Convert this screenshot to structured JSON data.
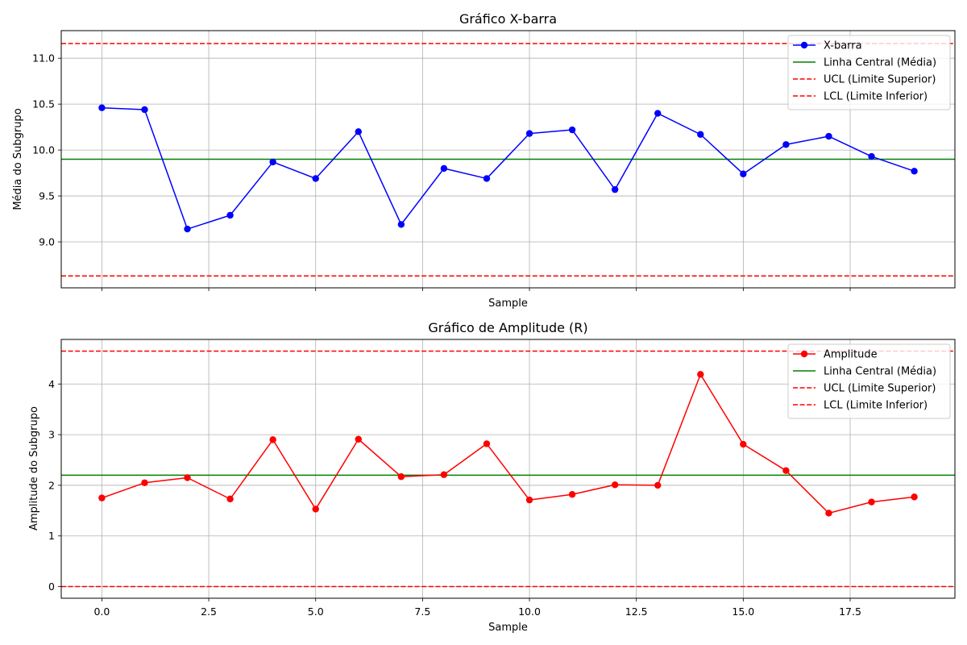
{
  "chart_data": [
    {
      "type": "line",
      "title": "Gráfico X-barra",
      "xlabel": "Sample",
      "ylabel": "Média do Subgrupo",
      "xlim": [
        -0.95,
        19.95
      ],
      "ylim": [
        8.5,
        11.3
      ],
      "xticks": [
        0.0,
        2.5,
        5.0,
        7.5,
        10.0,
        12.5,
        15.0,
        17.5
      ],
      "xtick_labels_visible": false,
      "yticks": [
        9.0,
        9.5,
        10.0,
        10.5,
        11.0
      ],
      "ytick_labels": [
        "9.0",
        "9.5",
        "10.0",
        "10.5",
        "11.0"
      ],
      "grid": true,
      "legend_position": "top-right",
      "series": [
        {
          "name": "X-barra",
          "color": "#0000ff",
          "marker": "circle",
          "x": [
            0,
            1,
            2,
            3,
            4,
            5,
            6,
            7,
            8,
            9,
            10,
            11,
            12,
            13,
            14,
            15,
            16,
            17,
            18,
            19
          ],
          "values": [
            10.46,
            10.44,
            9.14,
            9.29,
            9.87,
            9.69,
            10.2,
            9.19,
            9.8,
            9.69,
            10.18,
            10.22,
            9.57,
            10.4,
            10.17,
            9.74,
            10.06,
            10.15,
            9.93,
            9.77
          ]
        }
      ],
      "hlines": [
        {
          "name": "Linha Central (Média)",
          "value": 9.9,
          "color": "#008000",
          "style": "solid"
        },
        {
          "name": "UCL (Limite Superior)",
          "value": 11.16,
          "color": "#ff0000",
          "style": "dashed"
        },
        {
          "name": "LCL (Limite Inferior)",
          "value": 8.63,
          "color": "#ff0000",
          "style": "dashed"
        }
      ]
    },
    {
      "type": "line",
      "title": "Gráfico de Amplitude (R)",
      "xlabel": "Sample",
      "ylabel": "Amplitude do Subgrupo",
      "xlim": [
        -0.95,
        19.95
      ],
      "ylim": [
        -0.23,
        4.88
      ],
      "xticks": [
        0.0,
        2.5,
        5.0,
        7.5,
        10.0,
        12.5,
        15.0,
        17.5
      ],
      "xtick_labels": [
        "0.0",
        "2.5",
        "5.0",
        "7.5",
        "10.0",
        "12.5",
        "15.0",
        "17.5"
      ],
      "yticks": [
        0,
        1,
        2,
        3,
        4
      ],
      "ytick_labels": [
        "0",
        "1",
        "2",
        "3",
        "4"
      ],
      "grid": true,
      "legend_position": "top-right",
      "series": [
        {
          "name": "Amplitude",
          "color": "#ff0000",
          "marker": "circle",
          "x": [
            0,
            1,
            2,
            3,
            4,
            5,
            6,
            7,
            8,
            9,
            10,
            11,
            12,
            13,
            14,
            15,
            16,
            17,
            18,
            19
          ],
          "values": [
            1.75,
            2.05,
            2.15,
            1.73,
            2.9,
            1.53,
            2.91,
            2.17,
            2.21,
            2.82,
            1.71,
            1.82,
            2.01,
            2.0,
            4.19,
            2.81,
            2.29,
            1.45,
            1.67,
            1.77
          ]
        }
      ],
      "hlines": [
        {
          "name": "Linha Central (Média)",
          "value": 2.2,
          "color": "#008000",
          "style": "solid"
        },
        {
          "name": "UCL (Limite Superior)",
          "value": 4.65,
          "color": "#ff0000",
          "style": "dashed"
        },
        {
          "name": "LCL (Limite Inferior)",
          "value": 0.0,
          "color": "#ff0000",
          "style": "dashed"
        }
      ]
    }
  ]
}
